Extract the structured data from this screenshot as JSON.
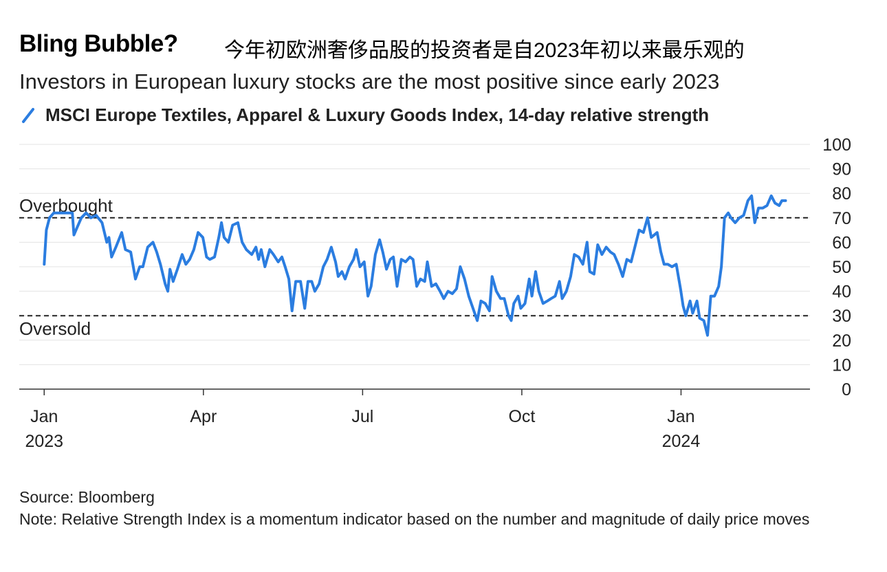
{
  "chart_data": {
    "type": "line",
    "title": "Bling Bubble?",
    "title_zh": "今年初欧洲奢侈品股的投资者是自2023年初以来最乐观的",
    "subtitle": "Investors in European luxury stocks are the most positive since early 2023",
    "source": "Source: Bloomberg",
    "note": "Note: Relative Strength Index is a momentum indicator based on the number and magnitude of daily price moves",
    "xlim": [
      -0.47,
      14.43
    ],
    "xticks": [
      {
        "value": 0,
        "label": "Jan",
        "year": "2023"
      },
      {
        "value": 3,
        "label": "Apr"
      },
      {
        "value": 6,
        "label": "Jul"
      },
      {
        "value": 9,
        "label": "Oct"
      },
      {
        "value": 12,
        "label": "Jan",
        "year": "2024"
      }
    ],
    "ylim": [
      0,
      100
    ],
    "yticks": [
      0,
      10,
      20,
      30,
      40,
      50,
      60,
      70,
      80,
      90,
      100
    ],
    "grid": true,
    "annotations": [
      {
        "text": "Overbought",
        "value": 70
      },
      {
        "text": "Oversold",
        "value": 30
      }
    ],
    "x": [
      0,
      0.04,
      0.1,
      0.18,
      0.26,
      0.53,
      0.56,
      0.62,
      0.7,
      0.79,
      0.88,
      0.98,
      1.09,
      1.18,
      1.22,
      1.27,
      1.35,
      1.46,
      1.53,
      1.63,
      1.72,
      1.8,
      1.86,
      1.95,
      2.05,
      2.12,
      2.19,
      2.28,
      2.33,
      2.37,
      2.43,
      2.51,
      2.6,
      2.67,
      2.74,
      2.82,
      2.9,
      2.99,
      3.06,
      3.12,
      3.21,
      3.29,
      3.34,
      3.39,
      3.47,
      3.55,
      3.65,
      3.73,
      3.81,
      3.91,
      3.99,
      4.04,
      4.09,
      4.16,
      4.25,
      4.32,
      4.41,
      4.48,
      4.54,
      4.61,
      4.67,
      4.74,
      4.83,
      4.91,
      4.97,
      5.04,
      5.1,
      5.18,
      5.26,
      5.33,
      5.41,
      5.49,
      5.54,
      5.61,
      5.67,
      5.75,
      5.83,
      5.88,
      5.95,
      6.03,
      6.1,
      6.16,
      6.24,
      6.32,
      6.38,
      6.45,
      6.52,
      6.58,
      6.65,
      6.73,
      6.81,
      6.89,
      6.95,
      7.02,
      7.09,
      7.17,
      7.22,
      7.3,
      7.38,
      7.46,
      7.53,
      7.61,
      7.69,
      7.77,
      7.84,
      7.92,
      8.0,
      8.08,
      8.16,
      8.23,
      8.31,
      8.39,
      8.44,
      8.52,
      8.6,
      8.67,
      8.75,
      8.8,
      8.85,
      8.93,
      8.98,
      9.06,
      9.14,
      9.19,
      9.26,
      9.32,
      9.4,
      9.48,
      9.55,
      9.63,
      9.71,
      9.76,
      9.84,
      9.92,
      9.99,
      10.07,
      10.15,
      10.23,
      10.28,
      10.36,
      10.43,
      10.51,
      10.59,
      10.67,
      10.74,
      10.82,
      10.9,
      10.98,
      11.06,
      11.13,
      11.21,
      11.29,
      11.37,
      11.44,
      11.55,
      11.62,
      11.68,
      11.75,
      11.83,
      11.91,
      11.99,
      12.04,
      12.09,
      12.17,
      12.22,
      12.3,
      12.35,
      12.43,
      12.5,
      12.56,
      12.63,
      12.71,
      12.76,
      12.82,
      12.89,
      12.94,
      13.02,
      13.1,
      13.18,
      13.26,
      13.33,
      13.39,
      13.46,
      13.54,
      13.62,
      13.7,
      13.77,
      13.85,
      13.9,
      13.97
    ],
    "series": [
      {
        "name": "MSCI Europe Textiles, Apparel & Luxury Goods Index, 14-day relative strength",
        "color": "#2b7de0",
        "values": [
          51,
          65,
          70,
          72,
          72,
          72,
          63,
          66,
          70,
          72,
          70,
          71,
          68,
          60,
          62,
          54,
          58,
          64,
          57,
          56,
          45,
          50,
          50,
          58,
          60,
          56,
          51,
          43,
          40,
          49,
          44,
          49,
          55,
          51,
          53,
          57,
          64,
          62,
          54,
          53,
          54,
          62,
          68,
          62,
          60,
          67,
          68,
          60,
          57,
          55,
          58,
          53,
          57,
          50,
          57,
          55,
          52,
          54,
          50,
          45,
          32,
          44,
          44,
          33,
          44,
          44,
          40,
          43,
          50,
          53,
          58,
          52,
          46,
          48,
          45,
          50,
          53,
          57,
          50,
          52,
          38,
          42,
          55,
          61,
          56,
          49,
          53,
          54,
          42,
          53,
          52,
          54,
          53,
          42,
          45,
          44,
          52,
          42,
          43,
          40,
          37,
          40,
          39,
          41,
          50,
          45,
          38,
          33,
          28,
          36,
          35,
          32,
          46,
          40,
          37,
          37,
          30,
          28,
          35,
          38,
          33,
          35,
          45,
          38,
          48,
          40,
          35,
          36,
          37,
          38,
          44,
          37,
          40,
          46,
          55,
          54,
          51,
          60,
          48,
          47,
          59,
          55,
          58,
          56,
          55,
          51,
          46,
          53,
          52,
          58,
          65,
          64,
          70,
          62,
          64,
          56,
          51,
          51,
          50,
          51,
          41,
          34,
          30,
          36,
          31,
          36,
          29,
          28,
          22,
          38,
          38,
          42,
          50,
          70,
          72,
          70,
          68,
          70,
          71,
          77,
          79,
          68,
          74,
          74,
          75,
          79,
          76,
          75,
          77,
          77
        ]
      }
    ]
  }
}
